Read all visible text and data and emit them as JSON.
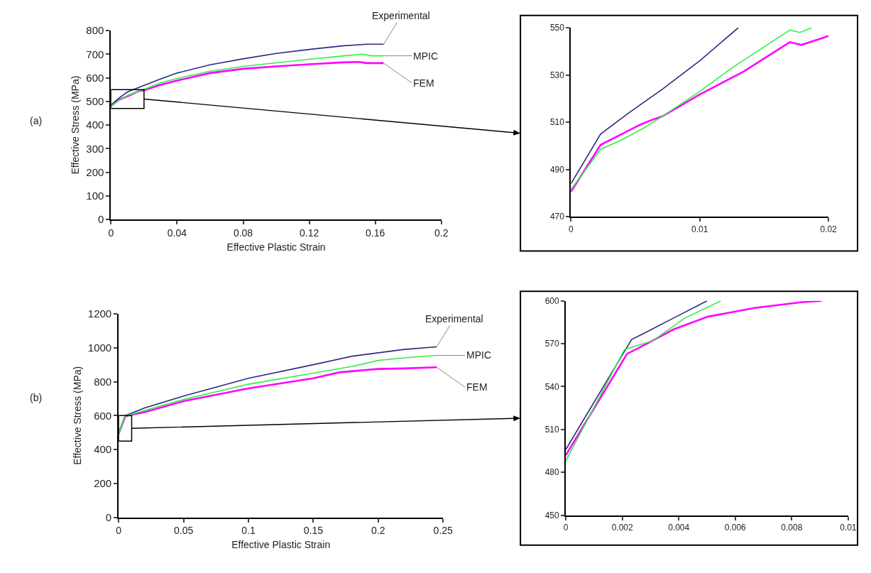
{
  "chart_data": [
    {
      "type": "line",
      "xlabel": "Effective Plastic Strain",
      "ylabel": "Effective Stress (MPa)",
      "annotations": [
        "(a)"
      ],
      "xlim": [
        0,
        0.2
      ],
      "xticks": [
        0,
        0.04,
        0.08,
        0.12,
        0.16,
        0.2
      ],
      "ylim": [
        0,
        800
      ],
      "yticks": [
        0,
        100,
        200,
        300,
        400,
        500,
        600,
        700,
        800
      ],
      "series": [
        {
          "name": "Experimental",
          "color": "#2b2b7f",
          "x": [
            0,
            0.005,
            0.01,
            0.02,
            0.03,
            0.04,
            0.06,
            0.08,
            0.1,
            0.12,
            0.14,
            0.155,
            0.165
          ],
          "values": [
            485,
            515,
            540,
            568,
            595,
            620,
            655,
            680,
            703,
            720,
            735,
            742,
            742
          ]
        },
        {
          "name": "MPIC",
          "color": "#33ee44",
          "x": [
            0,
            0.005,
            0.01,
            0.02,
            0.03,
            0.04,
            0.06,
            0.08,
            0.1,
            0.12,
            0.14,
            0.152,
            0.158,
            0.165
          ],
          "values": [
            482,
            505,
            525,
            551,
            578,
            597,
            628,
            648,
            663,
            678,
            692,
            700,
            693,
            693
          ]
        },
        {
          "name": "FEM",
          "color": "#ff00ff",
          "x": [
            0,
            0.005,
            0.01,
            0.017,
            0.02,
            0.03,
            0.04,
            0.06,
            0.08,
            0.1,
            0.12,
            0.14,
            0.15,
            0.155,
            0.165
          ],
          "values": [
            481,
            507,
            522,
            544,
            547,
            570,
            588,
            620,
            638,
            648,
            657,
            665,
            667,
            662,
            662
          ]
        }
      ]
    },
    {
      "type": "line",
      "xlim": [
        0,
        0.02
      ],
      "xticks": [
        0,
        0.01,
        0.02
      ],
      "ylim": [
        470,
        550
      ],
      "yticks": [
        470,
        490,
        510,
        530,
        550
      ],
      "series": [
        {
          "color": "#2b2b7f",
          "x": [
            0,
            0.0023,
            0.0045,
            0.0071,
            0.01,
            0.013
          ],
          "values": [
            484,
            505,
            514,
            524,
            536,
            550
          ]
        },
        {
          "color": "#33ee44",
          "x": [
            0,
            0.0023,
            0.0041,
            0.0057,
            0.0071,
            0.01,
            0.0125,
            0.017,
            0.0178,
            0.0187
          ],
          "values": [
            481.6,
            498.5,
            503,
            507.7,
            512.5,
            523,
            533,
            549,
            548,
            550
          ]
        },
        {
          "color": "#ff00ff",
          "x": [
            0,
            0.0023,
            0.0054,
            0.0061,
            0.0071,
            0.01,
            0.0134,
            0.017,
            0.0179,
            0.02
          ],
          "values": [
            480.6,
            500.4,
            509,
            510.6,
            512.5,
            521.7,
            531.4,
            543.9,
            542.7,
            546.5
          ]
        }
      ]
    },
    {
      "type": "line",
      "xlabel": "Effective Plastic Strain",
      "ylabel": "Effective Stress (MPa)",
      "annotations": [
        "(b)"
      ],
      "xlim": [
        0,
        0.25
      ],
      "xticks": [
        0,
        0.05,
        0.1,
        0.15,
        0.2,
        0.25
      ],
      "ylim": [
        0,
        1200
      ],
      "yticks": [
        0,
        200,
        400,
        600,
        800,
        1000,
        1200
      ],
      "series": [
        {
          "name": "Experimental",
          "color": "#2b2b7f",
          "x": [
            0,
            0.005,
            0.01,
            0.02,
            0.05,
            0.1,
            0.15,
            0.18,
            0.2,
            0.22,
            0.245
          ],
          "values": [
            495,
            600,
            615,
            645,
            715,
            820,
            900,
            950,
            970,
            990,
            1005
          ]
        },
        {
          "name": "MPIC",
          "color": "#33ee44",
          "x": [
            0,
            0.005,
            0.01,
            0.02,
            0.05,
            0.1,
            0.15,
            0.18,
            0.2,
            0.22,
            0.245
          ],
          "values": [
            490,
            598,
            608,
            630,
            695,
            785,
            850,
            890,
            925,
            940,
            955
          ]
        },
        {
          "name": "FEM",
          "color": "#ff00ff",
          "x": [
            0,
            0.005,
            0.01,
            0.02,
            0.05,
            0.1,
            0.15,
            0.17,
            0.2,
            0.22,
            0.245
          ],
          "values": [
            492,
            595,
            605,
            620,
            685,
            760,
            820,
            855,
            875,
            878,
            885
          ]
        }
      ]
    },
    {
      "type": "line",
      "xlim": [
        0,
        0.01
      ],
      "xticks": [
        0,
        0.002,
        0.004,
        0.006,
        0.008,
        0.01
      ],
      "ylim": [
        450,
        600
      ],
      "yticks": [
        450,
        480,
        510,
        540,
        570,
        600
      ],
      "series": [
        {
          "color": "#2b2b7f",
          "x": [
            0,
            0.00233,
            0.00274,
            0.00372,
            0.005
          ],
          "values": [
            496,
            573,
            577,
            587,
            600
          ]
        },
        {
          "color": "#33ee44",
          "x": [
            0,
            0.00208,
            0.00307,
            0.00422,
            0.00549
          ],
          "values": [
            488,
            566,
            572,
            588,
            600
          ]
        },
        {
          "color": "#ff00ff",
          "x": [
            0,
            0.00217,
            0.00258,
            0.00381,
            0.00504,
            0.00668,
            0.00832,
            0.00906
          ],
          "values": [
            492,
            563,
            567,
            580,
            589,
            595,
            599,
            600
          ]
        }
      ]
    }
  ]
}
